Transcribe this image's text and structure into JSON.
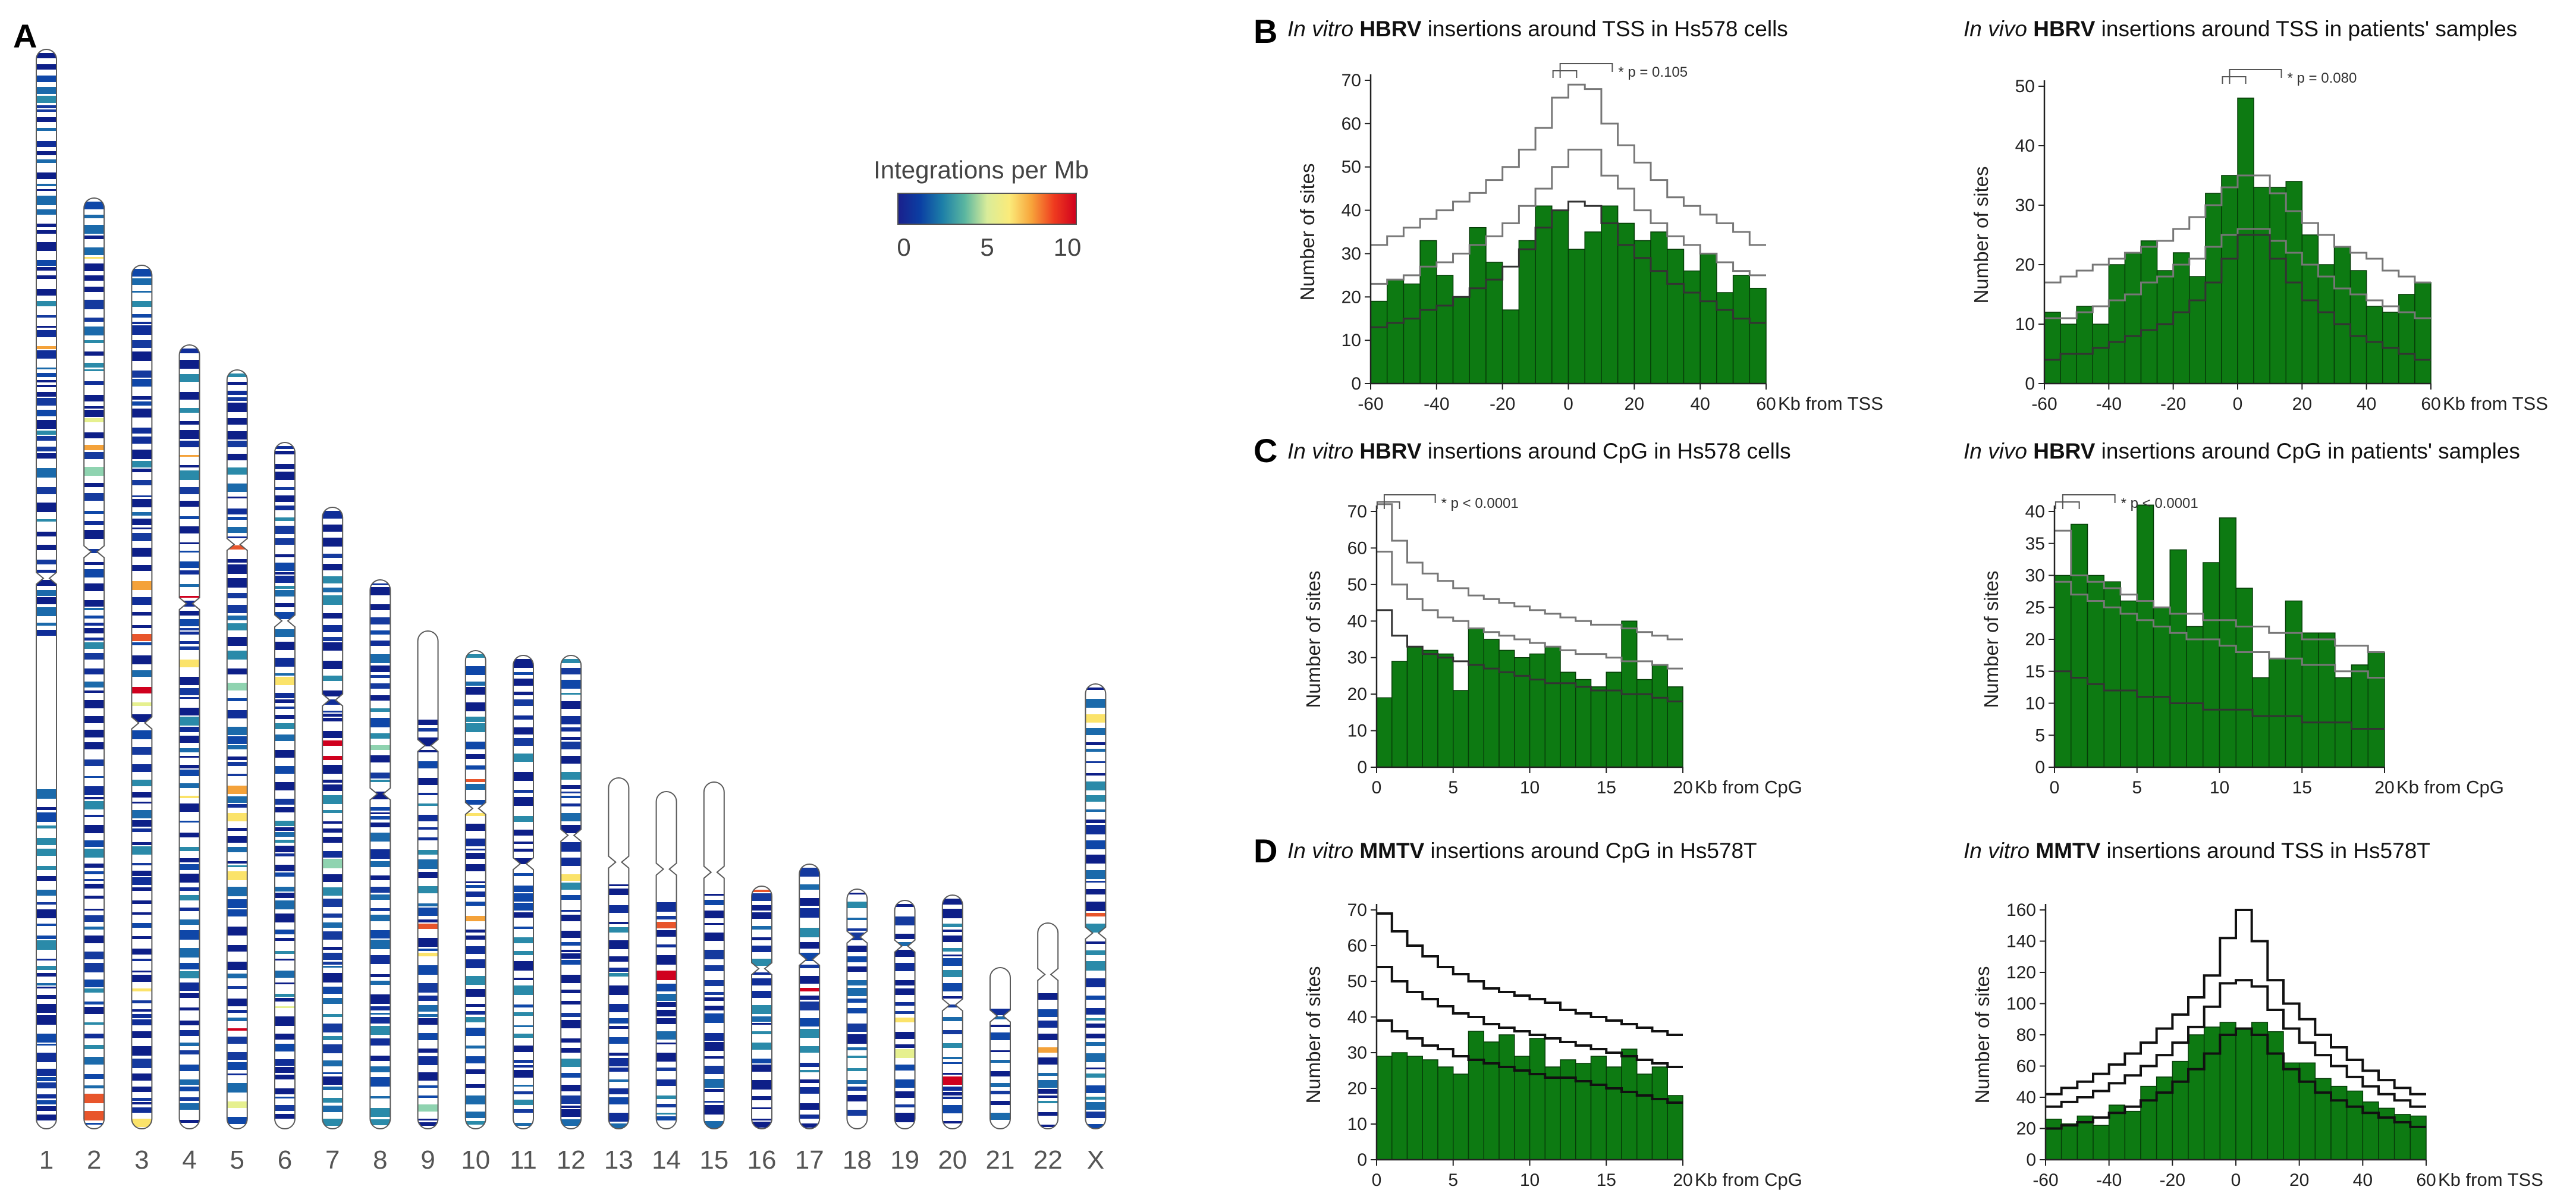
{
  "panels": {
    "A": "A",
    "B": "B",
    "C": "C",
    "D": "D"
  },
  "legend": {
    "title": "Integrations per Mb",
    "ticks": [
      "0",
      "5",
      "10"
    ],
    "colors": [
      "#1a1f8c",
      "#0b3fa3",
      "#1d7fa8",
      "#5ab6a0",
      "#d9ec9a",
      "#fbeb7a",
      "#f7a33a",
      "#ef3b1f",
      "#d0001e"
    ]
  },
  "colors": {
    "bar_fill": "#0d7a12",
    "bar_stroke": "#063d08",
    "band_blue": "#0e2a8c",
    "band_light": "#ffffff"
  },
  "karyotype": {
    "labels": [
      "1",
      "2",
      "3",
      "4",
      "5",
      "6",
      "7",
      "8",
      "9",
      "10",
      "11",
      "12",
      "13",
      "14",
      "15",
      "16",
      "17",
      "18",
      "19",
      "20",
      "21",
      "22",
      "X"
    ]
  },
  "chart_data": [
    {
      "id": "B-left",
      "type": "bar",
      "title": {
        "italic": "In vitro",
        "bold": "HBRV",
        "rest": " insertions around TSS in Hs578 cells"
      },
      "xlabel": "Kb from TSS",
      "ylabel": "Number of sites",
      "xlim": [
        -60,
        60
      ],
      "ylim": [
        0,
        70
      ],
      "xticks": [
        -60,
        -40,
        -20,
        0,
        20,
        40,
        60
      ],
      "yticks": [
        0,
        10,
        20,
        30,
        40,
        50,
        60,
        70
      ],
      "bin_width": 5,
      "x": [
        -60,
        -55,
        -50,
        -45,
        -40,
        -35,
        -30,
        -25,
        -20,
        -15,
        -10,
        -5,
        0,
        5,
        10,
        15,
        20,
        25,
        30,
        35,
        40,
        45,
        50,
        55
      ],
      "values": [
        19,
        24,
        23,
        33,
        25,
        20,
        36,
        28,
        17,
        33,
        41,
        40,
        31,
        35,
        41,
        37,
        33,
        35,
        31,
        26,
        30,
        21,
        25,
        22
      ],
      "reference_lines": [
        {
          "name": "upper",
          "values": [
            32,
            34,
            36,
            38,
            40,
            42,
            44,
            47,
            50,
            54,
            59,
            66,
            69,
            68,
            60,
            55,
            51,
            47,
            43,
            41,
            39,
            37,
            35,
            32
          ]
        },
        {
          "name": "middle",
          "values": [
            23,
            24,
            25,
            27,
            28,
            30,
            32,
            34,
            37,
            41,
            45,
            50,
            54,
            54,
            48,
            45,
            40,
            37,
            34,
            32,
            30,
            28,
            26,
            25
          ]
        },
        {
          "name": "lower",
          "values": [
            13,
            14,
            15,
            17,
            18,
            20,
            22,
            24,
            27,
            31,
            36,
            40,
            42,
            41,
            37,
            32,
            29,
            26,
            23,
            21,
            19,
            17,
            15,
            14
          ]
        }
      ],
      "annotation": {
        "label": "* p = 0.105",
        "from_bin": 11,
        "to_bin": 12
      }
    },
    {
      "id": "B-right",
      "type": "bar",
      "title": {
        "italic": "In vivo",
        "bold": "HBRV",
        "rest": " insertions around TSS in patients' samples"
      },
      "xlabel": "Kb from TSS",
      "ylabel": "Number of sites",
      "xlim": [
        -60,
        60
      ],
      "ylim": [
        0,
        50
      ],
      "xticks": [
        -60,
        -40,
        -20,
        0,
        20,
        40,
        60
      ],
      "yticks": [
        0,
        10,
        20,
        30,
        40,
        50
      ],
      "bin_width": 5,
      "x": [
        -60,
        -55,
        -50,
        -45,
        -40,
        -35,
        -30,
        -25,
        -20,
        -15,
        -10,
        -5,
        0,
        5,
        10,
        15,
        20,
        25,
        30,
        35,
        40,
        45,
        50,
        55
      ],
      "values": [
        12,
        10,
        13,
        10,
        20,
        22,
        24,
        19,
        22,
        18,
        32,
        35,
        48,
        33,
        33,
        34,
        25,
        20,
        23,
        19,
        13,
        12,
        15,
        17
      ],
      "reference_lines": [
        {
          "name": "upper",
          "values": [
            17,
            18,
            19,
            20,
            21,
            22,
            23,
            24,
            26,
            28,
            30,
            33,
            35,
            35,
            32,
            29,
            27,
            25,
            23,
            22,
            21,
            19,
            18,
            17
          ]
        },
        {
          "name": "middle",
          "values": [
            11,
            11,
            12,
            13,
            14,
            15,
            17,
            18,
            20,
            21,
            23,
            25,
            26,
            26,
            24,
            22,
            20,
            18,
            16,
            15,
            14,
            13,
            12,
            11
          ]
        },
        {
          "name": "lower",
          "values": [
            4,
            5,
            5,
            6,
            7,
            8,
            9,
            10,
            12,
            14,
            17,
            21,
            25,
            25,
            21,
            17,
            14,
            12,
            10,
            8,
            7,
            6,
            5,
            4
          ]
        }
      ],
      "annotation": {
        "label": "* p = 0.080",
        "from_bin": 11,
        "to_bin": 12
      }
    },
    {
      "id": "C-left",
      "type": "bar",
      "title": {
        "italic": "In vitro",
        "bold": "HBRV",
        "rest": " insertions around CpG in Hs578 cells"
      },
      "xlabel": "Kb from CpG",
      "ylabel": "Number of sites",
      "xlim": [
        0,
        20
      ],
      "ylim": [
        0,
        70
      ],
      "xticks": [
        0,
        5,
        10,
        15,
        20
      ],
      "yticks": [
        0,
        10,
        20,
        30,
        40,
        50,
        60,
        70
      ],
      "bin_width": 1,
      "x": [
        0,
        1,
        2,
        3,
        4,
        5,
        6,
        7,
        8,
        9,
        10,
        11,
        12,
        13,
        14,
        15,
        16,
        17,
        18,
        19
      ],
      "values": [
        19,
        29,
        33,
        32,
        31,
        21,
        38,
        35,
        32,
        30,
        31,
        33,
        26,
        24,
        22,
        26,
        40,
        24,
        28,
        22
      ],
      "reference_lines": [
        {
          "name": "upper",
          "values": [
            72,
            62,
            56,
            53,
            51,
            49,
            47,
            46,
            45,
            44,
            43,
            42,
            41,
            40,
            39,
            39,
            38,
            37,
            36,
            35
          ]
        },
        {
          "name": "middle",
          "values": [
            59,
            50,
            46,
            43,
            41,
            40,
            38,
            37,
            36,
            35,
            34,
            33,
            32,
            31,
            31,
            30,
            29,
            29,
            28,
            27
          ]
        },
        {
          "name": "lower",
          "values": [
            43,
            36,
            33,
            31,
            30,
            29,
            28,
            27,
            26,
            25,
            24,
            23,
            23,
            22,
            21,
            21,
            20,
            20,
            19,
            18
          ]
        }
      ],
      "annotation": {
        "label": "* p < 0.0001",
        "from_bin": 0,
        "to_bin": 1
      }
    },
    {
      "id": "C-right",
      "type": "bar",
      "title": {
        "italic": "In vivo",
        "bold": "HBRV",
        "rest": " insertions around CpG in patients' samples"
      },
      "xlabel": "Kb from CpG",
      "ylabel": "Number of sites",
      "xlim": [
        0,
        20
      ],
      "ylim": [
        0,
        40
      ],
      "xticks": [
        0,
        5,
        10,
        15,
        20
      ],
      "yticks": [
        0,
        5,
        10,
        15,
        20,
        25,
        30,
        35,
        40
      ],
      "bin_width": 1,
      "x": [
        0,
        1,
        2,
        3,
        4,
        5,
        6,
        7,
        8,
        9,
        10,
        11,
        12,
        13,
        14,
        15,
        16,
        17,
        18,
        19
      ],
      "values": [
        30,
        38,
        30,
        29,
        26,
        41,
        25,
        34,
        22,
        32,
        39,
        28,
        14,
        17,
        26,
        21,
        21,
        14,
        16,
        18
      ],
      "reference_lines": [
        {
          "name": "upper",
          "values": [
            37,
            30,
            29,
            28,
            27,
            26,
            25,
            24,
            24,
            23,
            23,
            22,
            22,
            21,
            21,
            20,
            20,
            19,
            19,
            18
          ]
        },
        {
          "name": "middle",
          "values": [
            29,
            27,
            26,
            25,
            24,
            23,
            22,
            21,
            20,
            20,
            19,
            18,
            18,
            17,
            17,
            16,
            16,
            15,
            15,
            14
          ]
        },
        {
          "name": "lower",
          "values": [
            15,
            14,
            13,
            12,
            12,
            11,
            11,
            10,
            10,
            9,
            9,
            9,
            8,
            8,
            8,
            7,
            7,
            7,
            6,
            6
          ]
        }
      ],
      "annotation": {
        "label": "* p < 0.0001",
        "from_bin": 0,
        "to_bin": 1
      }
    },
    {
      "id": "D-left",
      "type": "bar",
      "title": {
        "italic": "In vitro",
        "bold": "MMTV",
        "rest": " insertions around CpG in Hs578T"
      },
      "xlabel": "Kb from CpG",
      "ylabel": "Number of sites",
      "xlim": [
        0,
        20
      ],
      "ylim": [
        0,
        70
      ],
      "xticks": [
        0,
        5,
        10,
        15,
        20
      ],
      "yticks": [
        0,
        10,
        20,
        30,
        40,
        50,
        60,
        70
      ],
      "bin_width": 1,
      "x": [
        0,
        1,
        2,
        3,
        4,
        5,
        6,
        7,
        8,
        9,
        10,
        11,
        12,
        13,
        14,
        15,
        16,
        17,
        18,
        19
      ],
      "values": [
        29,
        30,
        29,
        28,
        26,
        24,
        36,
        33,
        35,
        29,
        34,
        26,
        28,
        27,
        29,
        26,
        31,
        24,
        26,
        18
      ],
      "reference_lines": [
        {
          "name": "upper",
          "values": [
            69,
            64,
            60,
            57,
            54,
            52,
            50,
            48,
            47,
            46,
            45,
            44,
            42,
            41,
            40,
            39,
            38,
            37,
            36,
            35
          ]
        },
        {
          "name": "middle",
          "values": [
            54,
            50,
            47,
            45,
            43,
            41,
            40,
            38,
            37,
            36,
            35,
            34,
            33,
            32,
            31,
            30,
            29,
            28,
            27,
            26
          ]
        },
        {
          "name": "lower",
          "values": [
            39,
            36,
            34,
            32,
            31,
            29,
            28,
            27,
            26,
            25,
            24,
            23,
            23,
            22,
            21,
            20,
            19,
            18,
            17,
            16
          ]
        }
      ]
    },
    {
      "id": "D-right",
      "type": "bar",
      "title": {
        "italic": "In vitro",
        "bold": "MMTV",
        "rest": " insertions around TSS in Hs578T"
      },
      "xlabel": "Kb from TSS",
      "ylabel": "Number of sites",
      "xlim": [
        -60,
        60
      ],
      "ylim": [
        0,
        160
      ],
      "xticks": [
        -60,
        -40,
        -20,
        0,
        20,
        40,
        60
      ],
      "yticks": [
        0,
        20,
        40,
        60,
        80,
        100,
        120,
        140,
        160
      ],
      "bin_width": 5,
      "x": [
        -60,
        -55,
        -50,
        -45,
        -40,
        -35,
        -30,
        -25,
        -20,
        -15,
        -10,
        -5,
        0,
        5,
        10,
        15,
        20,
        25,
        30,
        35,
        40,
        45,
        50,
        55
      ],
      "values": [
        26,
        23,
        28,
        22,
        35,
        31,
        47,
        53,
        63,
        80,
        85,
        88,
        84,
        88,
        82,
        62,
        62,
        52,
        47,
        44,
        37,
        33,
        29,
        28
      ],
      "reference_lines": [
        {
          "name": "upper",
          "values": [
            42,
            46,
            50,
            55,
            61,
            68,
            75,
            84,
            93,
            104,
            118,
            142,
            160,
            140,
            115,
            100,
            90,
            80,
            72,
            64,
            57,
            51,
            46,
            42
          ]
        },
        {
          "name": "middle",
          "values": [
            34,
            37,
            40,
            44,
            49,
            54,
            60,
            67,
            75,
            85,
            98,
            113,
            115,
            111,
            96,
            84,
            75,
            67,
            60,
            53,
            47,
            42,
            38,
            34
          ]
        },
        {
          "name": "lower",
          "values": [
            20,
            22,
            24,
            27,
            30,
            34,
            38,
            43,
            50,
            58,
            68,
            80,
            84,
            80,
            68,
            58,
            50,
            43,
            38,
            34,
            30,
            27,
            24,
            21
          ]
        }
      ]
    }
  ]
}
